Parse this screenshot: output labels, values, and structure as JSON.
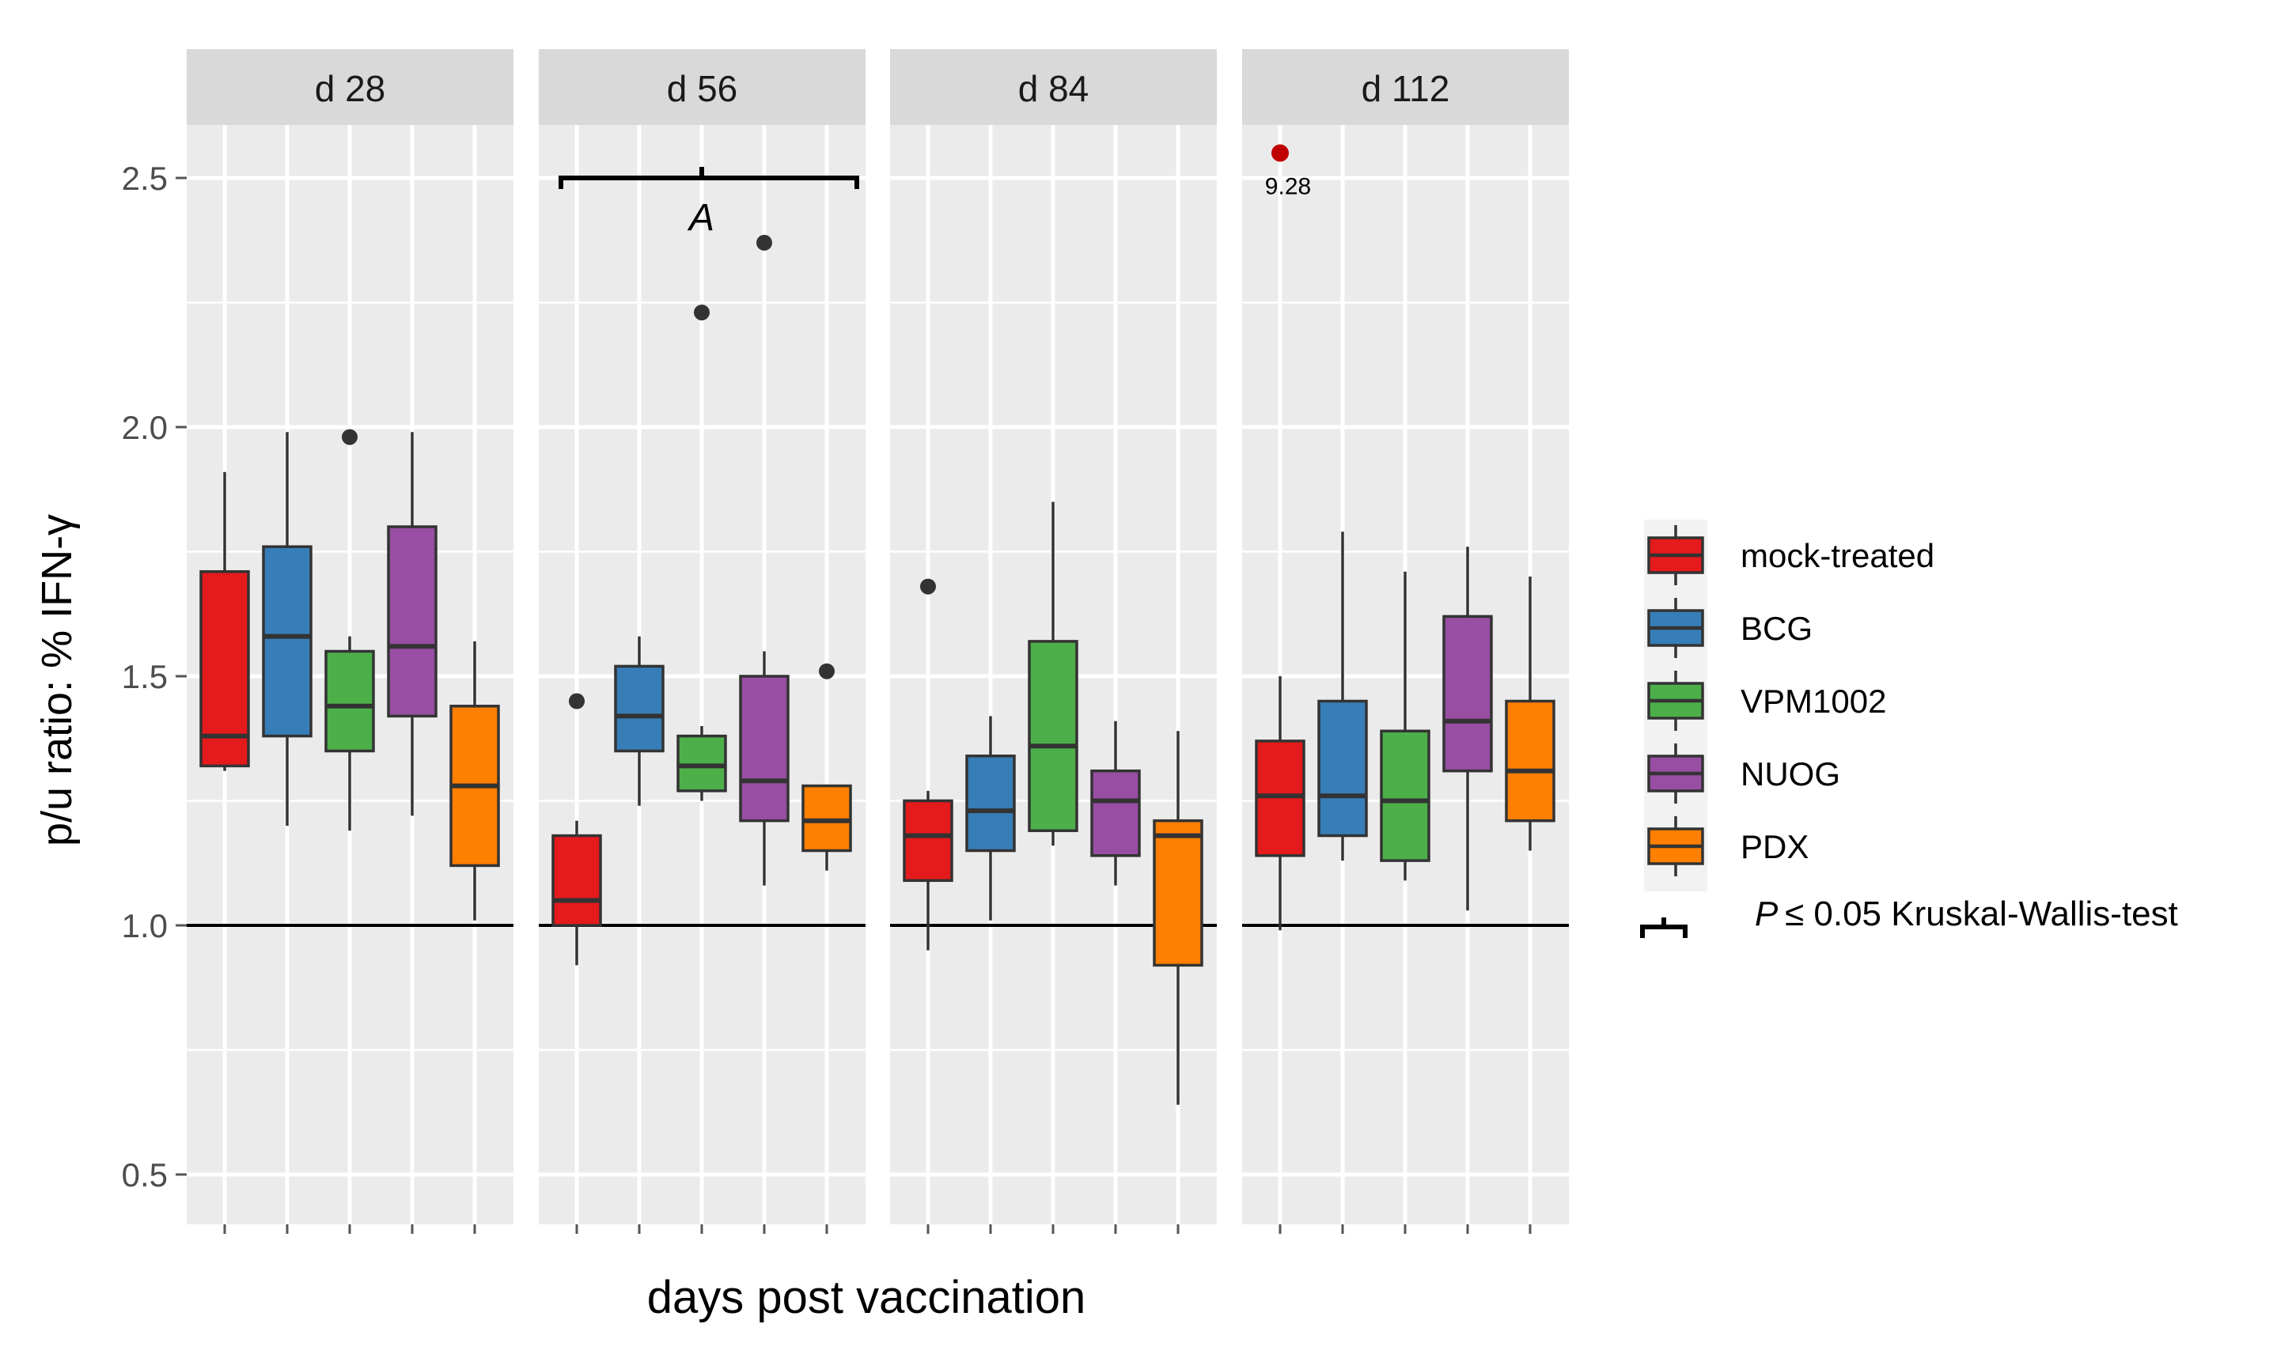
{
  "chart_data": {
    "type": "boxplot",
    "title": "",
    "xlabel": "days post vaccination",
    "ylabel": "p/u ratio: % IFN-γ",
    "ylim": [
      0.38,
      2.7
    ],
    "yticks": [
      0.5,
      1.0,
      1.5,
      2.0,
      2.5
    ],
    "ytick_labels": [
      "0.5",
      "1.0",
      "1.5",
      "2.0",
      "2.5"
    ],
    "reference_line": 1.0,
    "grid": true,
    "legend_position": "right",
    "groups": [
      {
        "name": "mock-treated",
        "color": "#e41a1c"
      },
      {
        "name": "BCG",
        "color": "#377eb8"
      },
      {
        "name": "VPM1002",
        "color": "#4daf4a"
      },
      {
        "name": "NUOG",
        "color": "#984ea3"
      },
      {
        "name": "PDX",
        "color": "#ff7f00"
      }
    ],
    "facets": [
      {
        "label": "d 28",
        "boxes": [
          {
            "lower_whisker": 1.31,
            "q1": 1.32,
            "median": 1.38,
            "q3": 1.71,
            "upper_whisker": 1.91,
            "outliers": []
          },
          {
            "lower_whisker": 1.2,
            "q1": 1.38,
            "median": 1.58,
            "q3": 1.76,
            "upper_whisker": 1.99,
            "outliers": []
          },
          {
            "lower_whisker": 1.19,
            "q1": 1.35,
            "median": 1.44,
            "q3": 1.55,
            "upper_whisker": 1.58,
            "outliers": [
              1.98
            ]
          },
          {
            "lower_whisker": 1.22,
            "q1": 1.42,
            "median": 1.56,
            "q3": 1.8,
            "upper_whisker": 1.99,
            "outliers": []
          },
          {
            "lower_whisker": 1.01,
            "q1": 1.12,
            "median": 1.28,
            "q3": 1.44,
            "upper_whisker": 1.57,
            "outliers": []
          }
        ]
      },
      {
        "label": "d 56",
        "boxes": [
          {
            "lower_whisker": 0.92,
            "q1": 1.0,
            "median": 1.05,
            "q3": 1.18,
            "upper_whisker": 1.21,
            "outliers": [
              1.45
            ]
          },
          {
            "lower_whisker": 1.24,
            "q1": 1.35,
            "median": 1.42,
            "q3": 1.52,
            "upper_whisker": 1.58,
            "outliers": []
          },
          {
            "lower_whisker": 1.25,
            "q1": 1.27,
            "median": 1.32,
            "q3": 1.38,
            "upper_whisker": 1.4,
            "outliers": [
              2.23
            ]
          },
          {
            "lower_whisker": 1.08,
            "q1": 1.21,
            "median": 1.29,
            "q3": 1.5,
            "upper_whisker": 1.55,
            "outliers": [
              2.37
            ]
          },
          {
            "lower_whisker": 1.11,
            "q1": 1.15,
            "median": 1.21,
            "q3": 1.28,
            "upper_whisker": 1.28,
            "outliers": [
              1.51
            ]
          }
        ],
        "significance_bracket": {
          "value": 2.5,
          "label": "A"
        }
      },
      {
        "label": "d 84",
        "boxes": [
          {
            "lower_whisker": 0.95,
            "q1": 1.09,
            "median": 1.18,
            "q3": 1.25,
            "upper_whisker": 1.27,
            "outliers": [
              1.68
            ]
          },
          {
            "lower_whisker": 1.01,
            "q1": 1.15,
            "median": 1.23,
            "q3": 1.34,
            "upper_whisker": 1.42,
            "outliers": []
          },
          {
            "lower_whisker": 1.16,
            "q1": 1.19,
            "median": 1.36,
            "q3": 1.57,
            "upper_whisker": 1.85,
            "outliers": []
          },
          {
            "lower_whisker": 1.08,
            "q1": 1.14,
            "median": 1.25,
            "q3": 1.31,
            "upper_whisker": 1.41,
            "outliers": []
          },
          {
            "lower_whisker": 0.64,
            "q1": 0.92,
            "median": 1.18,
            "q3": 1.21,
            "upper_whisker": 1.39,
            "outliers": []
          }
        ]
      },
      {
        "label": "d 112",
        "boxes": [
          {
            "lower_whisker": 0.99,
            "q1": 1.14,
            "median": 1.26,
            "q3": 1.37,
            "upper_whisker": 1.5,
            "outliers": []
          },
          {
            "lower_whisker": 1.13,
            "q1": 1.18,
            "median": 1.26,
            "q3": 1.45,
            "upper_whisker": 1.79,
            "outliers": []
          },
          {
            "lower_whisker": 1.09,
            "q1": 1.13,
            "median": 1.25,
            "q3": 1.39,
            "upper_whisker": 1.71,
            "outliers": []
          },
          {
            "lower_whisker": 1.03,
            "q1": 1.31,
            "median": 1.41,
            "q3": 1.62,
            "upper_whisker": 1.76,
            "outliers": []
          },
          {
            "lower_whisker": 1.15,
            "q1": 1.21,
            "median": 1.31,
            "q3": 1.45,
            "upper_whisker": 1.7,
            "outliers": []
          }
        ],
        "special_outlier": {
          "group": "mock-treated",
          "plotted_value": 2.55,
          "label": "9.28",
          "color": "#c00000"
        }
      }
    ],
    "legend_extra": {
      "p_symbol": "P",
      "text": "≤ 0.05  Kruskal-Wallis-test"
    }
  }
}
